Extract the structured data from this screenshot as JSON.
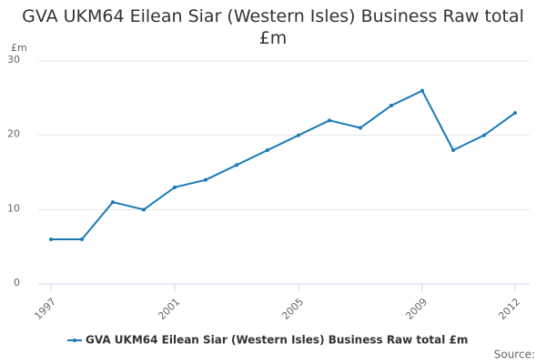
{
  "chart_data": {
    "type": "line",
    "title": "GVA UKM64 Eilean Siar (Western Isles) Business Raw total £m",
    "y_unit": "£m",
    "source": "Source:",
    "x": [
      1997,
      1998,
      1999,
      2000,
      2001,
      2002,
      2003,
      2004,
      2005,
      2006,
      2007,
      2008,
      2009,
      2010,
      2011,
      2012
    ],
    "series": [
      {
        "name": "GVA UKM64 Eilean Siar (Western Isles) Business Raw total £m",
        "color": "#1a79b5",
        "values": [
          6,
          6,
          11,
          10,
          13,
          14,
          16,
          18,
          20,
          22,
          21,
          24,
          26,
          18,
          20,
          23
        ]
      }
    ],
    "xlim": [
      1997,
      2012
    ],
    "xticks": [
      1997,
      2001,
      2005,
      2009,
      2012
    ],
    "ylim": [
      0,
      30
    ],
    "yticks": [
      0,
      10,
      20,
      30
    ],
    "grid": true
  }
}
